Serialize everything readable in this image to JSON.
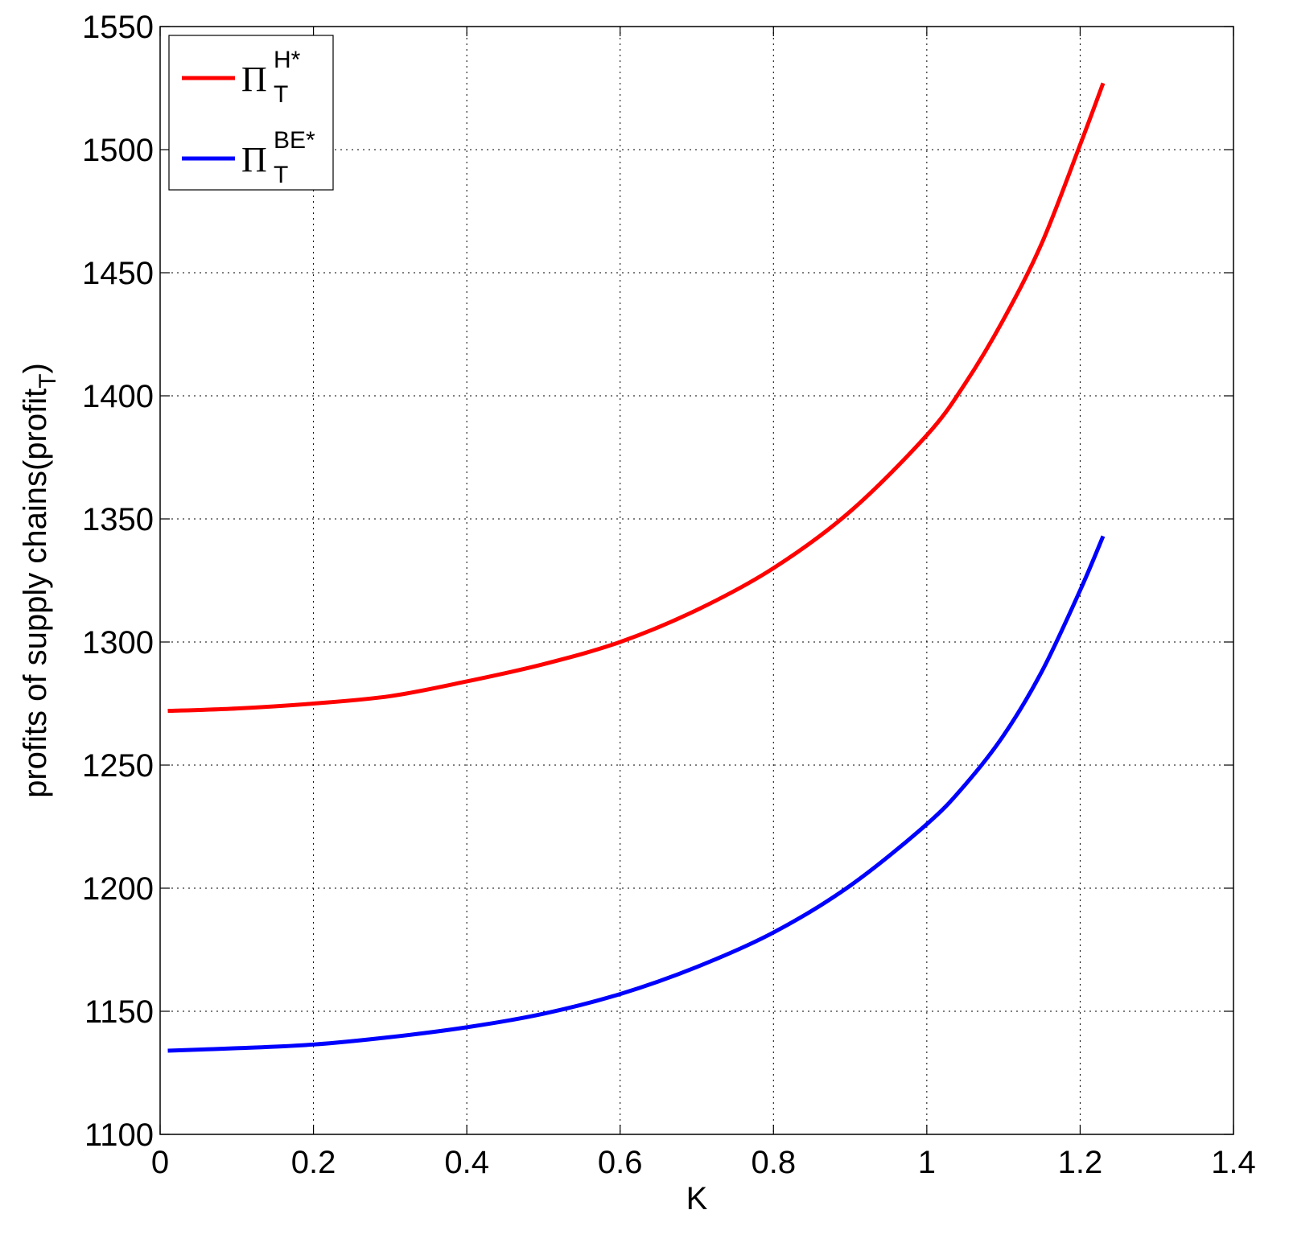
{
  "chart_data": {
    "type": "line",
    "xlabel": "K",
    "ylabel_main": "profits of supply chains(profit",
    "ylabel_sub": "T",
    "ylabel_close": ")",
    "xlim": [
      0,
      1.4
    ],
    "ylim": [
      1100,
      1550
    ],
    "xticks": [
      0,
      0.2,
      0.4,
      0.6,
      0.8,
      1,
      1.2,
      1.4
    ],
    "xtick_labels": [
      "0",
      "0.2",
      "0.4",
      "0.6",
      "0.8",
      "1",
      "1.2",
      "1.4"
    ],
    "yticks": [
      1100,
      1150,
      1200,
      1250,
      1300,
      1350,
      1400,
      1450,
      1500,
      1550
    ],
    "ytick_labels": [
      "1100",
      "1150",
      "1200",
      "1250",
      "1300",
      "1350",
      "1400",
      "1450",
      "1500",
      "1550"
    ],
    "grid": true,
    "legend_position": "top-left",
    "series": [
      {
        "name": "Π",
        "name_sub": "T",
        "name_sup": "H*",
        "color": "#ff0000",
        "x": [
          0.01,
          0.1,
          0.2,
          0.3,
          0.4,
          0.5,
          0.6,
          0.7,
          0.8,
          0.9,
          1.0,
          1.05,
          1.1,
          1.15,
          1.2,
          1.23
        ],
        "y": [
          1272,
          1273,
          1275,
          1278,
          1284,
          1291,
          1300,
          1313,
          1330,
          1353,
          1384,
          1405,
          1431,
          1462,
          1502,
          1527
        ]
      },
      {
        "name": "Π",
        "name_sub": "T",
        "name_sup": "BE*",
        "color": "#0000ff",
        "x": [
          0.01,
          0.1,
          0.2,
          0.3,
          0.4,
          0.5,
          0.6,
          0.7,
          0.8,
          0.9,
          1.0,
          1.05,
          1.1,
          1.15,
          1.2,
          1.23
        ],
        "y": [
          1134,
          1135,
          1136.5,
          1139.5,
          1143.5,
          1149,
          1157,
          1168,
          1182,
          1201,
          1226,
          1242,
          1262,
          1288,
          1321,
          1343
        ]
      }
    ]
  }
}
